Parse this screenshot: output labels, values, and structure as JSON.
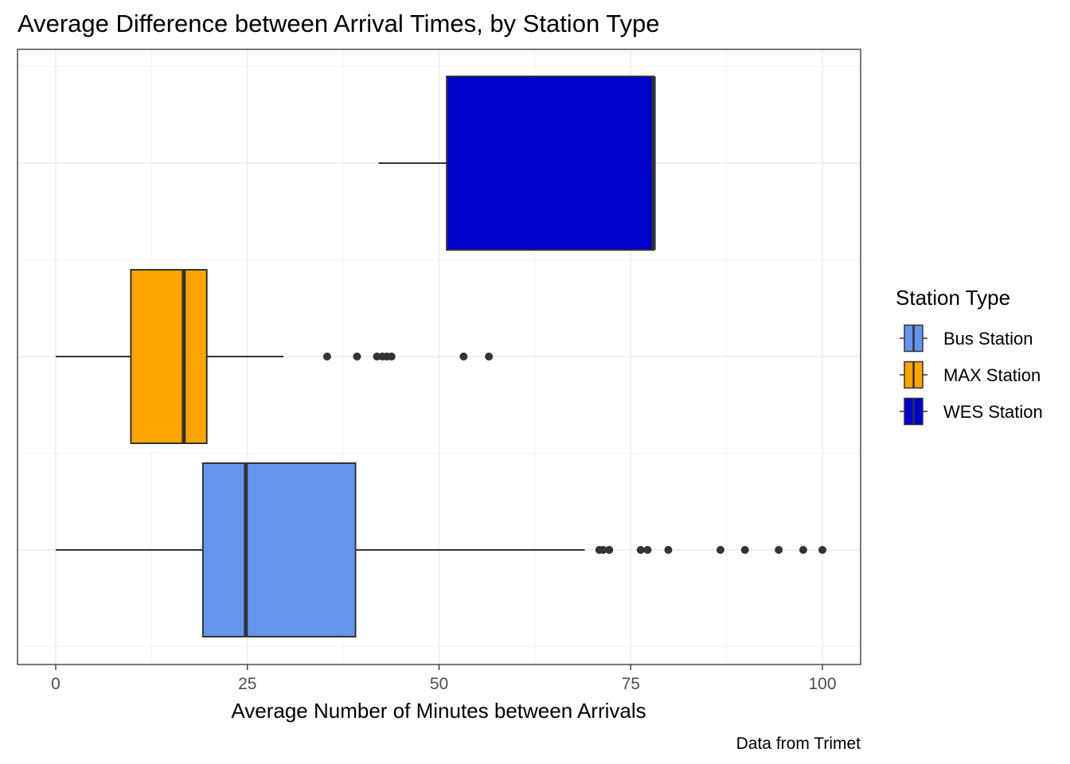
{
  "chart_data": {
    "type": "boxplot",
    "title": "Average Difference between Arrival Times, by Station Type",
    "xlabel": "Average Number of Minutes between Arrivals",
    "ylabel": "",
    "caption": "Data from Trimet",
    "xlim": [
      -5,
      105
    ],
    "x_ticks": [
      0,
      25,
      50,
      75,
      100
    ],
    "x_tick_labels": [
      "0",
      "25",
      "50",
      "75",
      "100"
    ],
    "grid": true,
    "orientation": "horizontal",
    "legend": {
      "title": "Station Type",
      "position": "right"
    },
    "series": [
      {
        "name": "Bus Station",
        "color": "#6495ED",
        "whisker_low": 0,
        "q1": 19.2,
        "median": 24.8,
        "q3": 39.1,
        "whisker_high": 69.0,
        "outliers": [
          70.9,
          71.4,
          72.2,
          76.3,
          77.2,
          79.9,
          86.7,
          89.9,
          94.3,
          97.5,
          100.0
        ]
      },
      {
        "name": "MAX Station",
        "color": "#FFA500",
        "whisker_low": 0,
        "q1": 9.8,
        "median": 16.7,
        "q3": 19.7,
        "whisker_high": 29.7,
        "outliers": [
          35.4,
          39.3,
          41.9,
          42.6,
          43.2,
          43.8,
          53.2,
          56.5
        ]
      },
      {
        "name": "WES Station",
        "color": "#0000CD",
        "whisker_low": 42.1,
        "q1": 51.0,
        "median": 78.0,
        "q3": 78.0,
        "whisker_high": 78.0,
        "outliers": []
      }
    ]
  }
}
